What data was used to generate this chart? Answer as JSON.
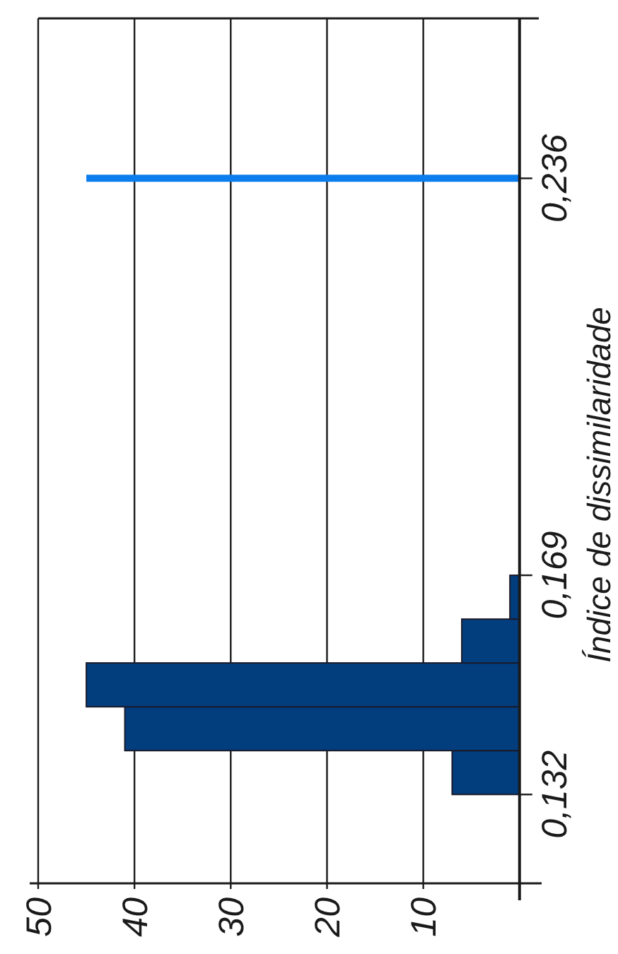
{
  "chart_data": {
    "type": "histogram",
    "orientation": "horizontal",
    "ylabel": "Índice de dissimilaridade",
    "bins": [
      0.132,
      0.1394,
      0.1468,
      0.1542,
      0.1616,
      0.169
    ],
    "values": [
      7,
      41,
      45,
      6,
      1
    ],
    "color": "#023d7e",
    "xlim": [
      50,
      -2
    ],
    "xticks": [
      {
        "value": 0,
        "label": null
      },
      10,
      20,
      30,
      40,
      50
    ],
    "ylim": [
      0.117,
      0.263
    ],
    "yticks": [
      {
        "value": 0.132,
        "label": "0,132"
      },
      {
        "value": 0.169,
        "label": "0,169"
      },
      {
        "value": 0.236,
        "label": "0,236"
      }
    ],
    "grid": "x",
    "ref_lines": [
      {
        "axis": "y",
        "value": 0.236,
        "color": "#0b7ded"
      }
    ]
  }
}
